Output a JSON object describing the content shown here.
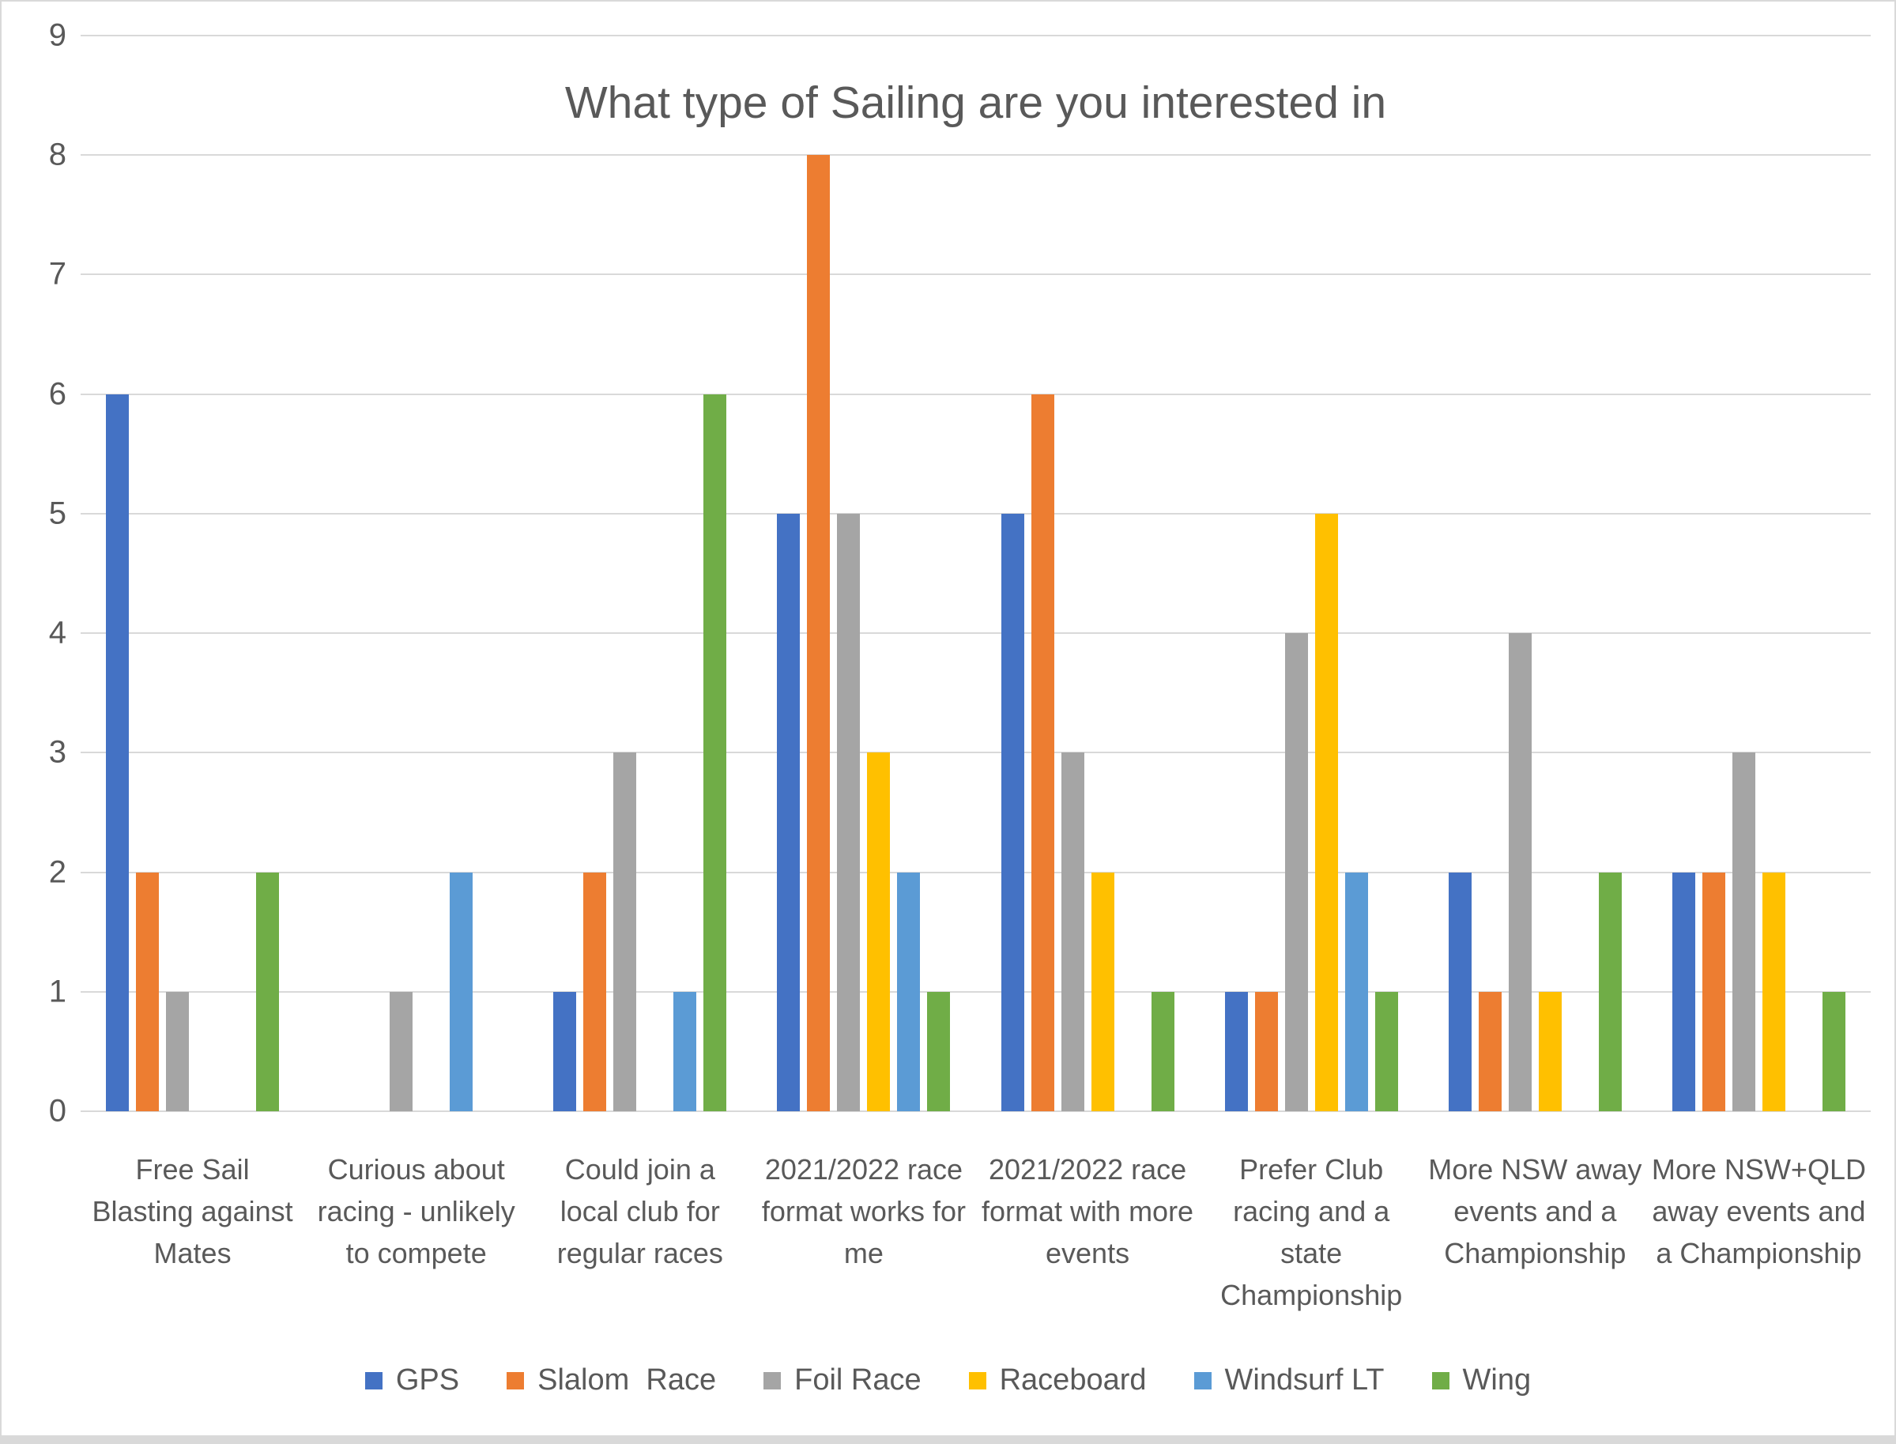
{
  "chart_data": {
    "type": "bar",
    "title": "What type of Sailing are you interested in",
    "categories": [
      "Free Sail Blasting against Mates",
      "Curious about racing - unlikely to compete",
      "Could join a local club for regular races",
      "2021/2022 race format works for me",
      "2021/2022 race format with more events",
      "Prefer Club racing and a state Championship",
      "More NSW away events and a Championship",
      "More NSW+QLD away events and a Championship"
    ],
    "series": [
      {
        "name": "GPS",
        "color": "#4472C4",
        "values": [
          6,
          0,
          1,
          5,
          5,
          1,
          2,
          2
        ]
      },
      {
        "name": "Slalom  Race",
        "color": "#ED7D31",
        "values": [
          2,
          0,
          2,
          8,
          6,
          1,
          1,
          2
        ]
      },
      {
        "name": "Foil Race",
        "color": "#A5A5A5",
        "values": [
          1,
          1,
          3,
          5,
          3,
          4,
          4,
          3
        ]
      },
      {
        "name": "Raceboard",
        "color": "#FFC000",
        "values": [
          0,
          0,
          0,
          3,
          2,
          5,
          1,
          2
        ]
      },
      {
        "name": "Windsurf LT",
        "color": "#5B9BD5",
        "values": [
          0,
          2,
          1,
          2,
          0,
          2,
          0,
          0
        ]
      },
      {
        "name": "Wing",
        "color": "#70AD47",
        "values": [
          2,
          0,
          6,
          1,
          1,
          1,
          2,
          1
        ]
      }
    ],
    "xlabel": "",
    "ylabel": "",
    "ylim": [
      0,
      9
    ],
    "y_ticks": [
      0,
      1,
      2,
      3,
      4,
      5,
      6,
      7,
      8,
      9
    ],
    "grid": true,
    "legend_position": "bottom"
  },
  "theme": {
    "text_color": "#595959",
    "gridline_color": "#D9D9D9",
    "background": "#FFFFFF",
    "frame_border_color": "#D9D9D9"
  }
}
